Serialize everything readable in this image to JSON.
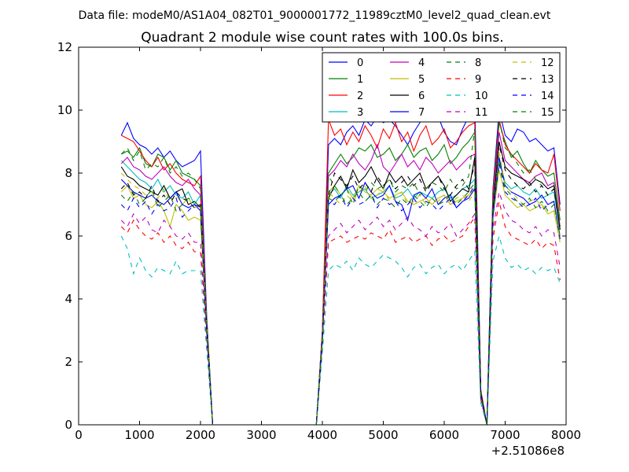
{
  "suptitle": "Data file: modeM0/AS1A04_082T01_9000001772_11989cztM0_level2_quad_clean.evt",
  "chart_data": {
    "type": "line",
    "title": "Quadrant 2 module wise count rates with 100.0s bins.",
    "xlabel": "",
    "ylabel": "",
    "x_offset_label": "+2.51086e8",
    "xlim": [
      0,
      8000
    ],
    "ylim": [
      0,
      12
    ],
    "xticks": [
      0,
      1000,
      2000,
      3000,
      4000,
      5000,
      6000,
      7000,
      8000
    ],
    "yticks": [
      0,
      2,
      4,
      6,
      8,
      10,
      12
    ],
    "legend_position": "upper-right",
    "legend_columns": 4,
    "x": [
      700,
      800,
      900,
      1000,
      1100,
      1200,
      1300,
      1400,
      1500,
      1600,
      1700,
      1800,
      1900,
      2000,
      2100,
      2200,
      3900,
      4000,
      4100,
      4200,
      4300,
      4400,
      4500,
      4600,
      4700,
      4800,
      4900,
      5000,
      5100,
      5200,
      5300,
      5400,
      5500,
      5600,
      5700,
      5800,
      5900,
      6000,
      6100,
      6200,
      6300,
      6400,
      6500,
      6600,
      6700,
      6800,
      6900,
      7000,
      7100,
      7200,
      7300,
      7400,
      7500,
      7600,
      7700,
      7800,
      7900
    ],
    "series": [
      {
        "name": "0",
        "color": "#0000ff",
        "dash": false,
        "values": [
          9.2,
          9.6,
          9.1,
          8.9,
          8.8,
          8.6,
          8.8,
          8.5,
          8.7,
          8.4,
          8.2,
          8.3,
          8.4,
          8.7,
          3.5,
          0,
          0,
          3.0,
          8.9,
          9.1,
          8.9,
          9.3,
          9.5,
          9.2,
          9.7,
          9.5,
          9.8,
          9.6,
          9.7,
          9.5,
          9.2,
          8.9,
          9.3,
          9.6,
          9.9,
          10.1,
          9.8,
          9.3,
          9.0,
          8.9,
          9.4,
          9.8,
          10.3,
          1.1,
          0,
          7.5,
          10.0,
          9.2,
          9.0,
          9.4,
          9.3,
          9.0,
          9.1,
          8.9,
          8.7,
          8.8,
          7.0
        ]
      },
      {
        "name": "1",
        "color": "#008000",
        "dash": false,
        "values": [
          8.6,
          8.7,
          8.5,
          8.8,
          8.3,
          8.2,
          8.6,
          8.5,
          8.1,
          8.4,
          8.0,
          7.9,
          7.8,
          7.6,
          3.4,
          0,
          0,
          2.9,
          8.0,
          8.3,
          8.6,
          8.3,
          8.5,
          8.8,
          8.7,
          8.9,
          8.5,
          8.6,
          8.8,
          8.4,
          8.6,
          8.9,
          8.5,
          8.7,
          8.8,
          8.4,
          8.6,
          8.9,
          8.3,
          8.5,
          8.8,
          9.0,
          9.3,
          1.0,
          0,
          7.2,
          9.6,
          9.0,
          8.5,
          8.7,
          8.3,
          8.0,
          8.4,
          8.1,
          7.9,
          8.0,
          6.5
        ]
      },
      {
        "name": "2",
        "color": "#ff0000",
        "dash": false,
        "values": [
          9.2,
          9.1,
          9.0,
          8.7,
          8.4,
          8.2,
          8.5,
          8.1,
          8.3,
          8.0,
          7.8,
          7.7,
          7.6,
          7.9,
          3.4,
          0,
          0,
          3.0,
          9.7,
          9.2,
          9.4,
          8.9,
          9.3,
          9.0,
          9.5,
          9.2,
          8.8,
          9.4,
          9.1,
          9.6,
          9.0,
          9.3,
          8.7,
          9.2,
          9.5,
          8.9,
          9.1,
          9.4,
          8.8,
          9.0,
          9.3,
          9.5,
          9.6,
          1.1,
          0,
          7.4,
          9.7,
          8.9,
          8.6,
          8.4,
          8.2,
          8.0,
          8.3,
          8.1,
          8.0,
          8.6,
          6.8
        ]
      },
      {
        "name": "3",
        "color": "#00bfbf",
        "dash": false,
        "values": [
          8.4,
          8.2,
          8.0,
          7.8,
          7.7,
          7.5,
          7.8,
          7.4,
          7.6,
          7.3,
          7.2,
          7.4,
          7.0,
          7.3,
          3.2,
          0,
          0,
          2.8,
          7.3,
          7.5,
          7.2,
          7.6,
          7.3,
          7.4,
          7.5,
          7.2,
          7.3,
          7.4,
          7.6,
          7.2,
          7.3,
          7.5,
          7.2,
          7.4,
          7.3,
          7.2,
          7.4,
          7.5,
          7.2,
          7.3,
          7.5,
          7.6,
          7.8,
          0.9,
          0,
          6.8,
          8.4,
          7.7,
          7.5,
          7.6,
          7.4,
          7.3,
          7.5,
          7.2,
          7.3,
          7.4,
          6.2
        ]
      },
      {
        "name": "4",
        "color": "#bf00bf",
        "dash": false,
        "values": [
          8.3,
          8.5,
          8.2,
          8.1,
          7.9,
          7.8,
          8.0,
          8.2,
          7.9,
          7.7,
          7.6,
          7.8,
          7.5,
          7.3,
          3.3,
          0,
          0,
          2.9,
          7.9,
          8.1,
          8.4,
          8.2,
          8.6,
          8.3,
          8.1,
          8.4,
          8.9,
          8.2,
          8.0,
          8.3,
          8.6,
          8.2,
          8.4,
          8.1,
          8.5,
          8.3,
          8.0,
          8.2,
          8.4,
          8.1,
          8.3,
          8.5,
          8.6,
          1.0,
          0,
          7.1,
          9.3,
          8.4,
          8.2,
          8.0,
          7.8,
          7.7,
          7.9,
          8.0,
          7.6,
          7.7,
          6.3
        ]
      },
      {
        "name": "5",
        "color": "#bfbf00",
        "dash": false,
        "values": [
          7.4,
          7.6,
          7.2,
          7.3,
          7.0,
          6.9,
          7.1,
          6.8,
          6.3,
          7.0,
          6.8,
          6.5,
          6.6,
          6.5,
          3.0,
          0,
          0,
          2.7,
          7.4,
          7.6,
          7.3,
          7.5,
          7.2,
          7.6,
          7.4,
          7.3,
          7.5,
          7.4,
          7.2,
          7.3,
          7.4,
          7.1,
          7.0,
          7.1,
          7.2,
          7.0,
          7.2,
          7.3,
          7.0,
          7.1,
          7.2,
          7.3,
          7.5,
          0.9,
          0,
          6.6,
          8.1,
          7.3,
          7.1,
          6.9,
          7.0,
          6.8,
          6.9,
          7.0,
          6.7,
          6.8,
          5.8
        ]
      },
      {
        "name": "6",
        "color": "#000000",
        "dash": false,
        "values": [
          8.2,
          7.9,
          7.8,
          7.6,
          7.5,
          7.4,
          7.3,
          7.6,
          7.2,
          7.4,
          7.5,
          7.0,
          7.1,
          6.9,
          3.2,
          0,
          0,
          2.8,
          7.2,
          7.6,
          7.9,
          7.5,
          8.1,
          7.7,
          7.9,
          8.2,
          7.8,
          7.5,
          8.0,
          7.7,
          7.9,
          7.6,
          7.8,
          8.0,
          7.5,
          7.7,
          7.9,
          7.6,
          7.1,
          7.3,
          7.5,
          7.4,
          8.5,
          1.0,
          0,
          6.8,
          9.0,
          8.2,
          8.0,
          7.9,
          7.8,
          7.6,
          7.8,
          7.7,
          7.5,
          7.6,
          6.2
        ]
      },
      {
        "name": "7",
        "color": "#0000ff",
        "dash": false,
        "values": [
          7.8,
          7.6,
          7.4,
          7.3,
          7.2,
          7.3,
          7.1,
          7.0,
          7.2,
          7.4,
          7.0,
          6.9,
          7.0,
          6.8,
          3.1,
          0,
          0,
          2.7,
          7.0,
          7.2,
          7.3,
          7.5,
          7.6,
          7.2,
          7.7,
          7.4,
          7.2,
          7.3,
          7.6,
          7.1,
          7.0,
          6.5,
          7.3,
          7.4,
          7.2,
          7.5,
          7.0,
          7.2,
          7.3,
          6.9,
          7.1,
          7.2,
          7.5,
          0.9,
          0,
          6.6,
          8.5,
          7.6,
          7.4,
          7.3,
          7.2,
          7.0,
          7.1,
          7.3,
          7.0,
          7.1,
          6.0
        ]
      },
      {
        "name": "8",
        "color": "#008000",
        "dash": true,
        "values": [
          8.6,
          8.8,
          8.4,
          8.7,
          8.1,
          8.3,
          8.2,
          8.5,
          8.0,
          8.2,
          7.9,
          8.0,
          7.8,
          7.5,
          3.4,
          0,
          0,
          2.9,
          7.9,
          7.6,
          7.3,
          7.5,
          7.0,
          7.6,
          7.4,
          7.7,
          7.5,
          7.6,
          7.8,
          7.4,
          7.6,
          7.5,
          7.7,
          7.3,
          7.5,
          7.7,
          7.6,
          7.4,
          7.8,
          7.5,
          7.6,
          7.9,
          9.4,
          1.0,
          0,
          7.4,
          9.7,
          8.8,
          8.6,
          8.3,
          8.0,
          8.1,
          7.8,
          7.6,
          7.3,
          7.5,
          6.3
        ]
      },
      {
        "name": "9",
        "color": "#ff0000",
        "dash": true,
        "values": [
          6.3,
          6.1,
          6.5,
          6.2,
          6.0,
          5.9,
          6.1,
          5.8,
          6.0,
          5.7,
          5.6,
          5.8,
          5.5,
          5.5,
          2.7,
          0,
          0,
          2.5,
          5.8,
          5.9,
          6.0,
          5.8,
          5.9,
          6.0,
          5.9,
          6.1,
          6.0,
          5.9,
          6.2,
          5.8,
          5.9,
          6.0,
          5.8,
          5.9,
          6.0,
          5.7,
          5.9,
          6.0,
          5.8,
          5.9,
          6.0,
          6.3,
          6.6,
          0.8,
          0,
          5.9,
          7.1,
          6.3,
          6.0,
          5.9,
          5.8,
          5.7,
          5.9,
          5.6,
          5.8,
          5.7,
          4.6
        ]
      },
      {
        "name": "10",
        "color": "#00bfbf",
        "dash": true,
        "values": [
          6.0,
          5.6,
          4.8,
          5.3,
          4.9,
          4.7,
          5.0,
          4.9,
          4.8,
          5.2,
          4.8,
          4.9,
          4.9,
          4.9,
          2.4,
          0,
          0,
          2.3,
          4.9,
          5.1,
          5.0,
          5.2,
          4.9,
          5.3,
          5.1,
          5.0,
          5.2,
          5.4,
          5.3,
          5.2,
          5.0,
          4.7,
          5.0,
          5.1,
          4.8,
          5.0,
          5.1,
          4.8,
          5.0,
          5.1,
          4.9,
          5.2,
          5.5,
          0.7,
          0,
          5.2,
          6.0,
          5.3,
          5.0,
          5.1,
          4.9,
          5.0,
          4.8,
          5.0,
          4.9,
          5.0,
          4.5
        ]
      },
      {
        "name": "11",
        "color": "#bf00bf",
        "dash": true,
        "values": [
          6.5,
          6.3,
          6.7,
          6.4,
          6.6,
          6.2,
          6.1,
          6.5,
          6.3,
          6.0,
          5.9,
          6.1,
          5.8,
          5.8,
          2.8,
          0,
          0,
          2.6,
          6.0,
          6.2,
          6.4,
          6.1,
          6.3,
          6.5,
          6.2,
          6.4,
          6.6,
          6.3,
          6.5,
          6.2,
          6.4,
          6.6,
          6.3,
          6.2,
          6.0,
          6.3,
          6.1,
          6.2,
          6.4,
          6.0,
          6.2,
          6.4,
          6.7,
          0.8,
          0,
          6.2,
          7.4,
          6.8,
          6.5,
          6.4,
          6.2,
          6.1,
          6.3,
          6.0,
          6.2,
          6.1,
          5.0
        ]
      },
      {
        "name": "12",
        "color": "#bfbf00",
        "dash": true,
        "values": [
          8.0,
          7.8,
          7.6,
          7.5,
          7.3,
          7.4,
          7.2,
          7.5,
          7.1,
          7.3,
          7.0,
          7.2,
          6.9,
          7.0,
          3.2,
          0,
          0,
          2.8,
          7.4,
          7.2,
          7.0,
          7.3,
          7.1,
          7.4,
          7.6,
          7.2,
          7.3,
          7.5,
          7.1,
          7.2,
          7.4,
          7.0,
          7.1,
          7.3,
          7.0,
          7.2,
          7.1,
          7.3,
          7.0,
          7.2,
          7.3,
          7.1,
          7.4,
          0.9,
          0,
          6.8,
          8.7,
          7.6,
          7.4,
          7.2,
          7.0,
          7.1,
          7.2,
          6.9,
          7.0,
          7.1,
          6.0
        ]
      },
      {
        "name": "13",
        "color": "#000000",
        "dash": true,
        "values": [
          7.5,
          7.7,
          7.3,
          7.4,
          7.2,
          7.6,
          7.1,
          7.3,
          7.0,
          7.4,
          7.2,
          7.1,
          6.9,
          7.0,
          3.1,
          0,
          0,
          2.7,
          7.3,
          8.0,
          7.8,
          7.6,
          7.9,
          7.5,
          7.7,
          7.4,
          7.9,
          7.6,
          7.8,
          7.5,
          7.7,
          7.9,
          7.6,
          7.8,
          7.4,
          7.7,
          7.9,
          7.5,
          7.3,
          7.6,
          7.8,
          7.5,
          8.3,
          1.0,
          0,
          6.9,
          8.9,
          8.1,
          7.8,
          7.6,
          7.5,
          7.7,
          7.4,
          7.6,
          7.3,
          7.5,
          6.2
        ]
      },
      {
        "name": "14",
        "color": "#0000ff",
        "dash": true,
        "values": [
          7.0,
          6.8,
          7.2,
          6.9,
          7.1,
          6.7,
          7.0,
          6.8,
          6.9,
          7.2,
          6.6,
          6.8,
          7.0,
          6.9,
          3.0,
          0,
          0,
          2.7,
          7.1,
          7.0,
          7.3,
          6.9,
          7.2,
          7.0,
          7.1,
          7.3,
          6.9,
          7.2,
          7.0,
          7.1,
          6.8,
          7.0,
          7.2,
          6.9,
          7.1,
          7.0,
          6.8,
          7.0,
          7.2,
          6.9,
          7.1,
          7.3,
          7.6,
          0.9,
          0,
          6.7,
          8.3,
          7.4,
          7.2,
          7.1,
          6.9,
          7.0,
          7.2,
          6.8,
          7.0,
          7.1,
          5.9
        ]
      },
      {
        "name": "15",
        "color": "#008000",
        "dash": true,
        "values": [
          7.3,
          7.1,
          7.4,
          7.0,
          7.2,
          7.5,
          6.9,
          7.1,
          7.3,
          6.8,
          7.0,
          7.2,
          7.1,
          6.9,
          3.1,
          0,
          0,
          2.7,
          7.2,
          7.1,
          7.3,
          7.0,
          7.2,
          7.4,
          7.1,
          7.3,
          7.0,
          7.2,
          7.1,
          6.9,
          7.2,
          7.0,
          7.3,
          7.1,
          6.9,
          7.2,
          7.0,
          7.1,
          7.3,
          7.0,
          7.2,
          7.4,
          7.7,
          0.9,
          0,
          6.8,
          8.4,
          7.5,
          7.3,
          7.1,
          7.0,
          7.2,
          6.9,
          7.1,
          6.8,
          7.0,
          6.0
        ]
      }
    ]
  }
}
